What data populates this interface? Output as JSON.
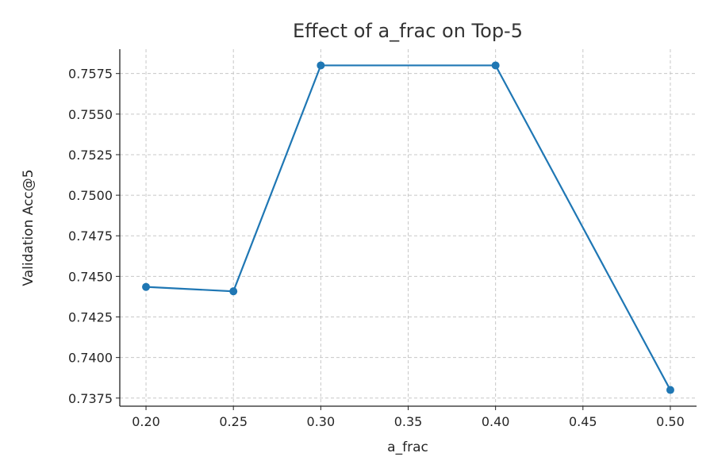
{
  "chart_data": {
    "type": "line",
    "title": "Effect of a_frac on Top-5",
    "xlabel": "a_frac",
    "ylabel": "Validation Acc@5",
    "x": [
      0.2,
      0.25,
      0.3,
      0.4,
      0.5
    ],
    "series": [
      {
        "name": "Top-5",
        "values": [
          0.74435,
          0.74408,
          0.758,
          0.758,
          0.738
        ]
      }
    ],
    "xlim": [
      0.185,
      0.515
    ],
    "ylim": [
      0.737,
      0.759
    ],
    "xticks": [
      0.2,
      0.25,
      0.3,
      0.35,
      0.4,
      0.45,
      0.5
    ],
    "xtick_labels": [
      "0.20",
      "0.25",
      "0.30",
      "0.35",
      "0.40",
      "0.45",
      "0.50"
    ],
    "yticks": [
      0.7375,
      0.74,
      0.7425,
      0.745,
      0.7475,
      0.75,
      0.7525,
      0.755,
      0.7575
    ],
    "ytick_labels": [
      "0.7375",
      "0.7400",
      "0.7425",
      "0.7450",
      "0.7475",
      "0.7500",
      "0.7525",
      "0.7550",
      "0.7575"
    ],
    "grid": true,
    "colors": {
      "line": "#1f77b4",
      "grid": "#c8c8c8",
      "axis": "#222222"
    }
  }
}
